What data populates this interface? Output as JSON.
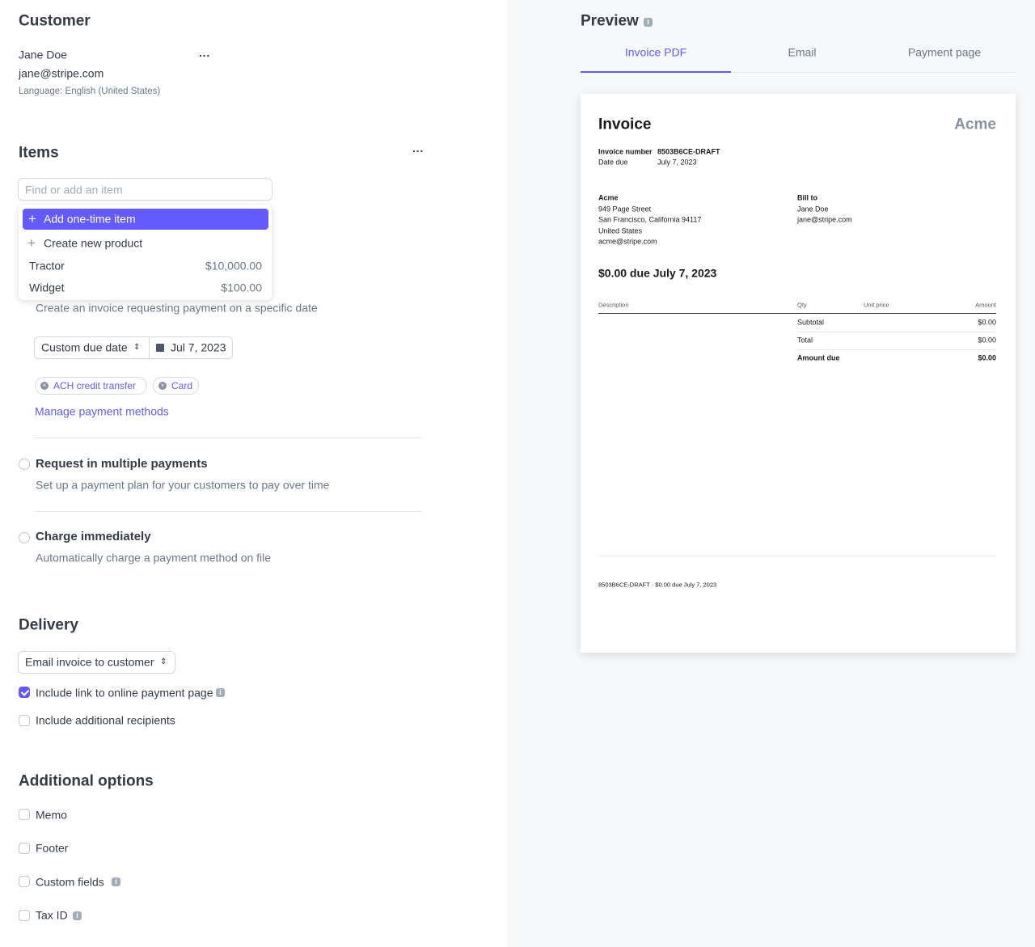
{
  "customer": {
    "title": "Customer",
    "name": "Jane Doe",
    "email": "jane@stripe.com",
    "language": "Language: English (United States)"
  },
  "items": {
    "title": "Items",
    "search_placeholder": "Find or add an item",
    "menu": [
      "Add one-time item",
      "Create new product"
    ],
    "products": [
      {
        "name": "Tractor",
        "price": "$10,000.00"
      },
      {
        "name": "Widget",
        "price": "$100.00"
      }
    ]
  },
  "payment": {
    "description": "Create an invoice requesting payment on a specific date",
    "due_select": "Custom due date",
    "due_date": "Jul 7, 2023",
    "methods": [
      "ACH credit transfer",
      "Card"
    ],
    "manage_link": "Manage payment methods",
    "options": [
      {
        "title": "Request in multiple payments",
        "description": "Set up a payment plan for your customers to pay over time"
      },
      {
        "title": "Charge immediately",
        "description": "Automatically charge a payment method on file"
      }
    ]
  },
  "delivery": {
    "title": "Delivery",
    "select": "Email invoice to customer",
    "checkboxes": [
      {
        "label": "Include link to online payment page",
        "checked": true
      },
      {
        "label": "Include additional recipients",
        "checked": false
      }
    ]
  },
  "additional_options": {
    "title": "Additional options",
    "checkboxes": [
      "Memo",
      "Footer",
      "Custom fields",
      "Tax ID"
    ]
  },
  "preview": {
    "title": "Preview",
    "tabs": [
      "Invoice PDF",
      "Email",
      "Payment page"
    ],
    "active_tab": 0,
    "invoice": {
      "title": "Invoice",
      "brand": "Acme",
      "meta": [
        {
          "label": "Invoice number",
          "value": "8503B6CE-DRAFT"
        },
        {
          "label": "Date due",
          "value": "July 7, 2023"
        }
      ],
      "from": {
        "heading": "Acme",
        "lines": [
          "949 Page Street",
          "San Francisco, California 94117",
          "United States",
          "acme@stripe.com"
        ]
      },
      "bill_to": {
        "heading": "Bill to",
        "lines": [
          "Jane Doe",
          "jane@stripe.com"
        ]
      },
      "amount_heading": "$0.00 due July 7, 2023",
      "columns": [
        "Description",
        "Qty",
        "Unit price",
        "Amount"
      ],
      "totals": [
        {
          "label": "Subtotal",
          "value": "$0.00"
        },
        {
          "label": "Total",
          "value": "$0.00"
        },
        {
          "label": "Amount due",
          "value": "$0.00"
        }
      ],
      "footer": "8503B6CE-DRAFT · $0.00 due July 7, 2023"
    }
  }
}
